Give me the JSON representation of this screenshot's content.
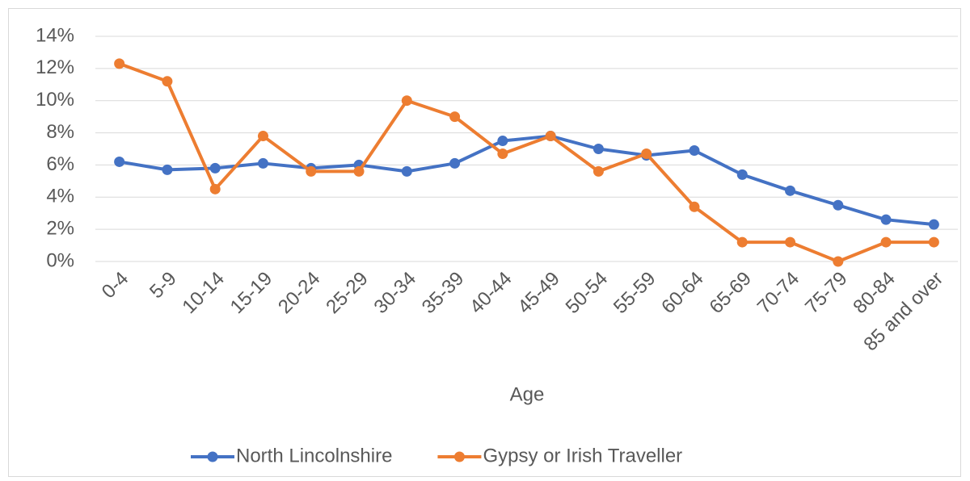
{
  "chart_data": {
    "type": "line",
    "x_label": "Age",
    "categories": [
      "0-4",
      "5-9",
      "10-14",
      "15-19",
      "20-24",
      "25-29",
      "30-34",
      "35-39",
      "40-44",
      "45-49",
      "50-54",
      "55-59",
      "60-64",
      "65-69",
      "70-74",
      "75-79",
      "80-84",
      "85 and over"
    ],
    "series": [
      {
        "name": "North Lincolnshire",
        "color": "#4472c4",
        "values": [
          6.2,
          5.7,
          5.8,
          6.1,
          5.8,
          6.0,
          5.6,
          6.1,
          7.5,
          7.8,
          7.0,
          6.6,
          6.9,
          5.4,
          4.4,
          3.5,
          2.6,
          2.3
        ]
      },
      {
        "name": "Gypsy or Irish Traveller",
        "color": "#ed7d31",
        "values": [
          12.3,
          11.2,
          4.5,
          7.8,
          5.6,
          5.6,
          10.0,
          9.0,
          6.7,
          7.8,
          5.6,
          6.7,
          3.4,
          1.2,
          1.2,
          0,
          1.2,
          1.2
        ]
      }
    ],
    "ylim": [
      0,
      14
    ],
    "yticks": [
      {
        "value": 0,
        "label": "0%"
      },
      {
        "value": 2,
        "label": "2%"
      },
      {
        "value": 4,
        "label": "4%"
      },
      {
        "value": 6,
        "label": "6%"
      },
      {
        "value": 8,
        "label": "8%"
      },
      {
        "value": 10,
        "label": "10%"
      },
      {
        "value": 12,
        "label": "12%"
      },
      {
        "value": 14,
        "label": "14%"
      }
    ],
    "grid": true,
    "legend": "bottom"
  }
}
